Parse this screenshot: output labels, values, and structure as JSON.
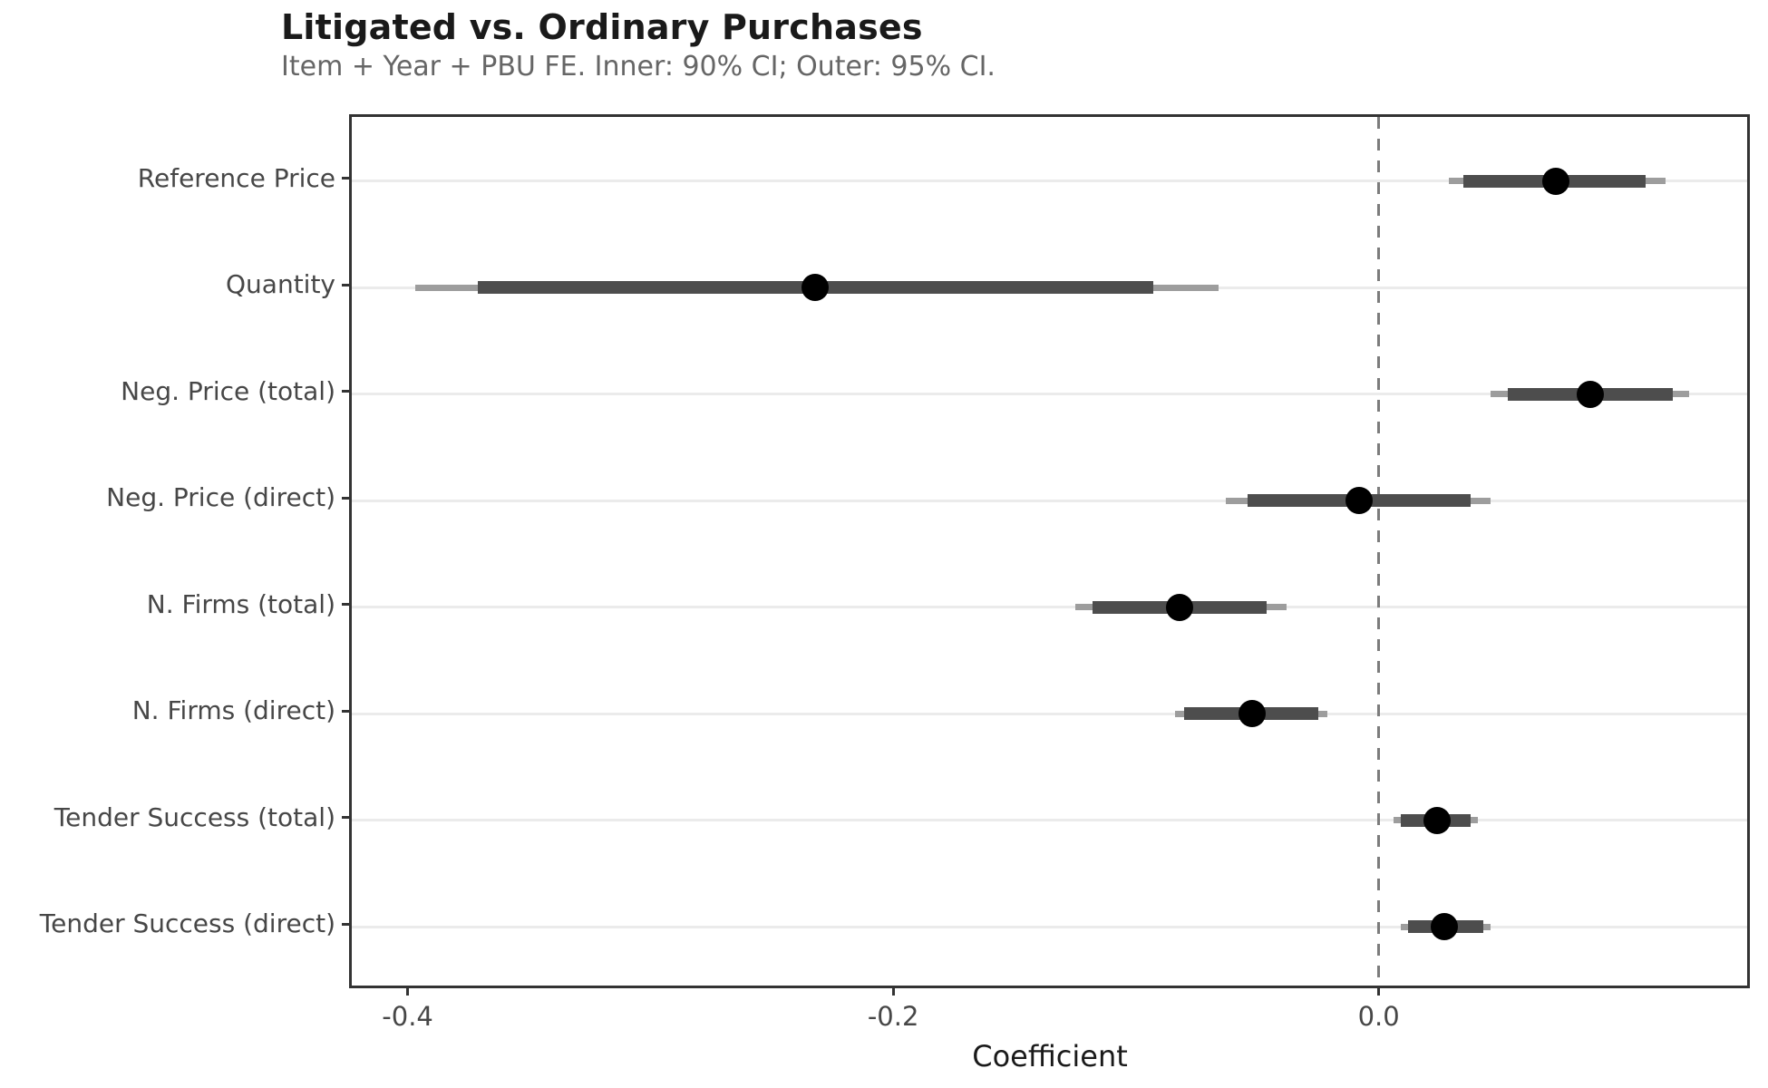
{
  "header": {
    "title": "Litigated vs. Ordinary Purchases",
    "subtitle": "Item + Year + PBU FE. Inner: 90% CI; Outer: 95% CI."
  },
  "chart_data": {
    "type": "forest_ci",
    "title": "Litigated vs. Ordinary Purchases",
    "subtitle": "Item + Year + PBU FE. Inner: 90% CI; Outer: 95% CI.",
    "xlabel": "Coefficient",
    "xlim": [
      -0.423,
      0.154
    ],
    "zero_line": 0.0,
    "grid": "horizontal-only",
    "x_ticks": [
      {
        "value": -0.4,
        "label": "-0.4"
      },
      {
        "value": -0.2,
        "label": "-0.2"
      },
      {
        "value": 0.0,
        "label": "0.0"
      }
    ],
    "ci_levels": {
      "inner": "90% CI",
      "outer": "95% CI"
    },
    "rows": [
      {
        "label": "Reference Price",
        "estimate": 0.073,
        "ci90": [
          0.035,
          0.11
        ],
        "ci95": [
          0.029,
          0.118
        ]
      },
      {
        "label": "Quantity",
        "estimate": -0.232,
        "ci90": [
          -0.371,
          -0.093
        ],
        "ci95": [
          -0.397,
          -0.066
        ]
      },
      {
        "label": "Neg. Price (total)",
        "estimate": 0.087,
        "ci90": [
          0.053,
          0.121
        ],
        "ci95": [
          0.046,
          0.128
        ]
      },
      {
        "label": "Neg. Price (direct)",
        "estimate": -0.008,
        "ci90": [
          -0.054,
          0.038
        ],
        "ci95": [
          -0.063,
          0.046
        ]
      },
      {
        "label": "N. Firms (total)",
        "estimate": -0.082,
        "ci90": [
          -0.118,
          -0.046
        ],
        "ci95": [
          -0.125,
          -0.038
        ]
      },
      {
        "label": "N. Firms (direct)",
        "estimate": -0.052,
        "ci90": [
          -0.08,
          -0.025
        ],
        "ci95": [
          -0.084,
          -0.021
        ]
      },
      {
        "label": "Tender Success (total)",
        "estimate": 0.024,
        "ci90": [
          0.009,
          0.038
        ],
        "ci95": [
          0.006,
          0.041
        ]
      },
      {
        "label": "Tender Success (direct)",
        "estimate": 0.027,
        "ci90": [
          0.012,
          0.043
        ],
        "ci95": [
          0.009,
          0.046
        ]
      }
    ]
  },
  "colors": {
    "background": "#ffffff",
    "title": "#1a1a1a",
    "subtitle": "#666666",
    "axis_text": "#474747",
    "axis_title": "#1a1a1a",
    "panel_border": "#333333",
    "grid_line": "#ebebeb",
    "zero_line": "#7c7c7c",
    "ci95_bar": "#9d9d9d",
    "ci90_bar": "#4d4d4d",
    "point": "#000000",
    "tick": "#333333"
  }
}
